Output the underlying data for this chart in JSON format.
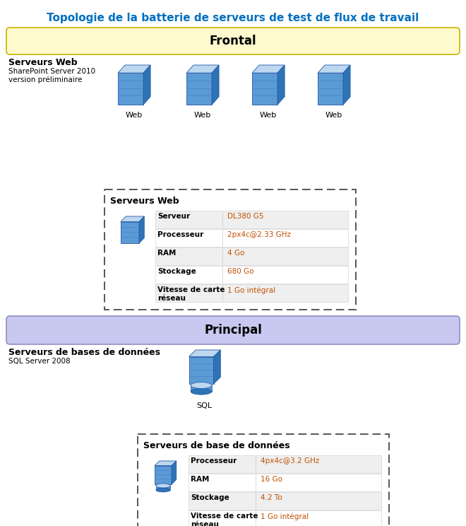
{
  "title": "Topologie de la batterie de serveurs de test de flux de travail",
  "title_color": "#0070C0",
  "bg_color": "#ffffff",
  "frontal_label": "Frontal",
  "frontal_bg": "#FFFACD",
  "frontal_border": "#C8B400",
  "principal_label": "Principal",
  "principal_bg": "#C8C8F0",
  "principal_border": "#9090C0",
  "web_servers_label": "Serveurs Web",
  "web_servers_sublabel": "SharePoint Server 2010\nversion préliminaire",
  "web_icon_label": "Web",
  "web_count": 4,
  "sql_servers_label": "Serveurs de bases de données",
  "sql_servers_sublabel": "SQL Server 2008",
  "sql_icon_label": "SQL",
  "spec_box1_title": "Serveurs Web",
  "spec_box1_rows": [
    [
      "Serveur",
      "DL380 G5"
    ],
    [
      "Processeur",
      "2px4c@2.33 GHz"
    ],
    [
      "RAM",
      "4 Go"
    ],
    [
      "Stockage",
      "680 Go"
    ],
    [
      "Vitesse de carte\nréseau",
      "1 Go intégral"
    ]
  ],
  "spec_box2_title": "Serveurs de base de données",
  "spec_box2_rows": [
    [
      "Processeur",
      "4px4c@3.2 GHz"
    ],
    [
      "RAM",
      "16 Go"
    ],
    [
      "Stockage",
      "4.2 To"
    ],
    [
      "Vitesse de carte\nréseau",
      "1 Go intégral"
    ]
  ],
  "value_color": "#C05000",
  "label_color": "#000000",
  "row_bg_odd": "#EFEFEF",
  "row_bg_even": "#FFFFFF"
}
